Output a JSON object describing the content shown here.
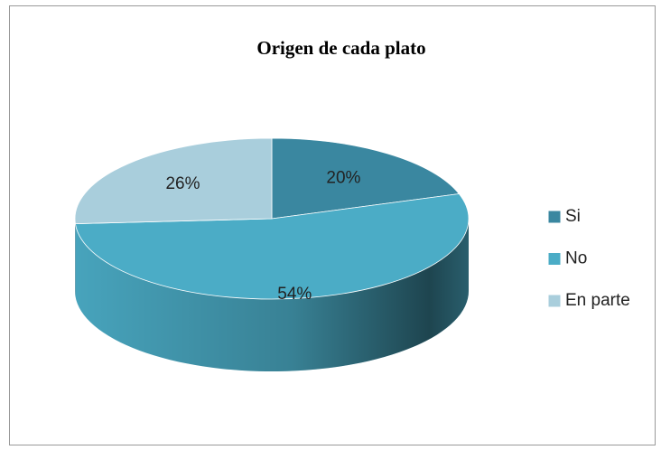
{
  "chart_data": {
    "type": "pie",
    "title": "Origen de cada plato",
    "categories": [
      "Si",
      "No",
      "En parte"
    ],
    "values": [
      20,
      54,
      26
    ],
    "value_labels": [
      "20%",
      "54%",
      "26%"
    ],
    "colors": [
      "#3a87a0",
      "#4bacc6",
      "#a9cedc"
    ],
    "legend": "right"
  }
}
